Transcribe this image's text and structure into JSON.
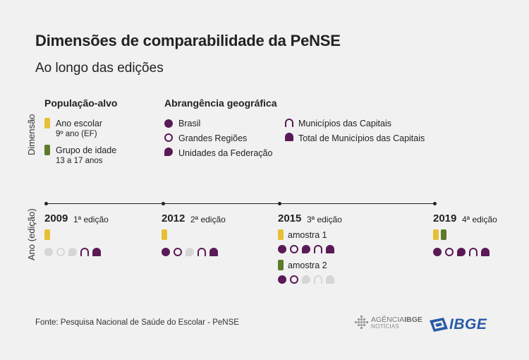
{
  "title": "Dimensões de comparabilidade da PeNSE",
  "subtitle": "Ao longo das edições",
  "axis_labels": {
    "dimensao": "Dimensão",
    "ano": "Ano (edição)"
  },
  "legend": {
    "populacao": {
      "header": "População-alvo",
      "items": [
        {
          "label": "Ano escolar",
          "sub": "9º ano (EF)",
          "color": "#e6c033"
        },
        {
          "label": "Grupo de idade",
          "sub": "13 a 17 anos",
          "color": "#5d7a2a"
        }
      ]
    },
    "abrangencia": {
      "header": "Abrangência geográfica",
      "items": [
        {
          "label": "Brasil",
          "shape": "circle-filled"
        },
        {
          "label": "Grandes Regiões",
          "shape": "circle-outline"
        },
        {
          "label": "Unidades da Federação",
          "shape": "circle-flat-filled"
        },
        {
          "label": "Municípios das Capitais",
          "shape": "arch-outline"
        },
        {
          "label": "Total de Municípios das Capitais",
          "shape": "arch-filled"
        }
      ]
    }
  },
  "colors": {
    "purple": "#5a1a56",
    "gray": "#d6d6d6",
    "yellow": "#e6c033",
    "green": "#5d7a2a"
  },
  "editions": [
    {
      "year": "2009",
      "edition": "1ª edição"
    },
    {
      "year": "2012",
      "edition": "2ª edição"
    },
    {
      "year": "2015",
      "edition": "3ª edição",
      "samples": [
        "amostra 1",
        "amostra 2"
      ]
    },
    {
      "year": "2019",
      "edition": "4ª edição"
    }
  ],
  "source": "Fonte: Pesquisa Nacional de Saúde do Escolar - PeNSE",
  "logos": {
    "agencia_top": "AGÊNCIA",
    "agencia_bold": "IBGE",
    "agencia_bottom": "NOTÍCIAS",
    "ibge": "IBGE"
  }
}
